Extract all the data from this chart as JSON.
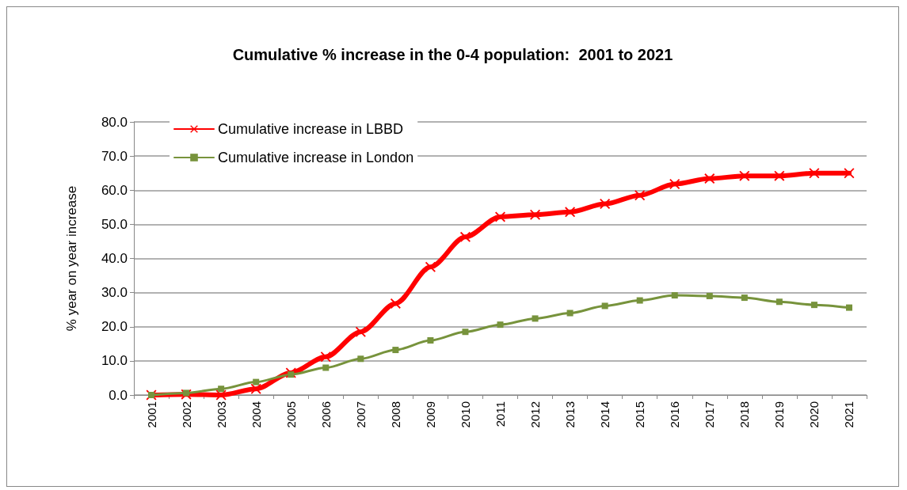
{
  "chart_data": {
    "type": "line",
    "title": "Cumulative % increase in the 0-4 population:  2001 to 2021",
    "ylabel": "% year on year increase",
    "categories": [
      "2001",
      "2002",
      "2003",
      "2004",
      "2005",
      "2006",
      "2007",
      "2008",
      "2009",
      "2010",
      "2011",
      "2012",
      "2013",
      "2014",
      "2015",
      "2016",
      "2017",
      "2018",
      "2019",
      "2020",
      "2021"
    ],
    "series": [
      {
        "name": "Cumulative increase in LBBD",
        "color": "#ff0000",
        "marker": "cross",
        "values": [
          0,
          0.2,
          0,
          1.8,
          6.5,
          11.2,
          18.5,
          26.8,
          37.5,
          46.3,
          52.2,
          52.8,
          53.6,
          56.0,
          58.5,
          61.8,
          63.4,
          64.2,
          64.2,
          65.0,
          65.0
        ]
      },
      {
        "name": "Cumulative increase in London",
        "color": "#77933c",
        "marker": "square",
        "values": [
          0,
          0.6,
          1.8,
          3.8,
          6.0,
          8.0,
          10.6,
          13.2,
          16.0,
          18.5,
          20.6,
          22.4,
          24.0,
          26.1,
          27.7,
          29.2,
          29.0,
          28.5,
          27.3,
          26.4,
          25.6
        ]
      }
    ],
    "ylim": [
      0,
      80
    ],
    "yticks": [
      {
        "value": 0,
        "label": "0.0"
      },
      {
        "value": 10,
        "label": "10.0"
      },
      {
        "value": 20,
        "label": "20.0"
      },
      {
        "value": 30,
        "label": "30.0"
      },
      {
        "value": 40,
        "label": "40.0"
      },
      {
        "value": 50,
        "label": "50.0"
      },
      {
        "value": 60,
        "label": "60.0"
      },
      {
        "value": 70,
        "label": "70.0"
      },
      {
        "value": 80,
        "label": "80.0"
      }
    ],
    "grid": "y",
    "legend": "top left",
    "line_style": "solid"
  }
}
